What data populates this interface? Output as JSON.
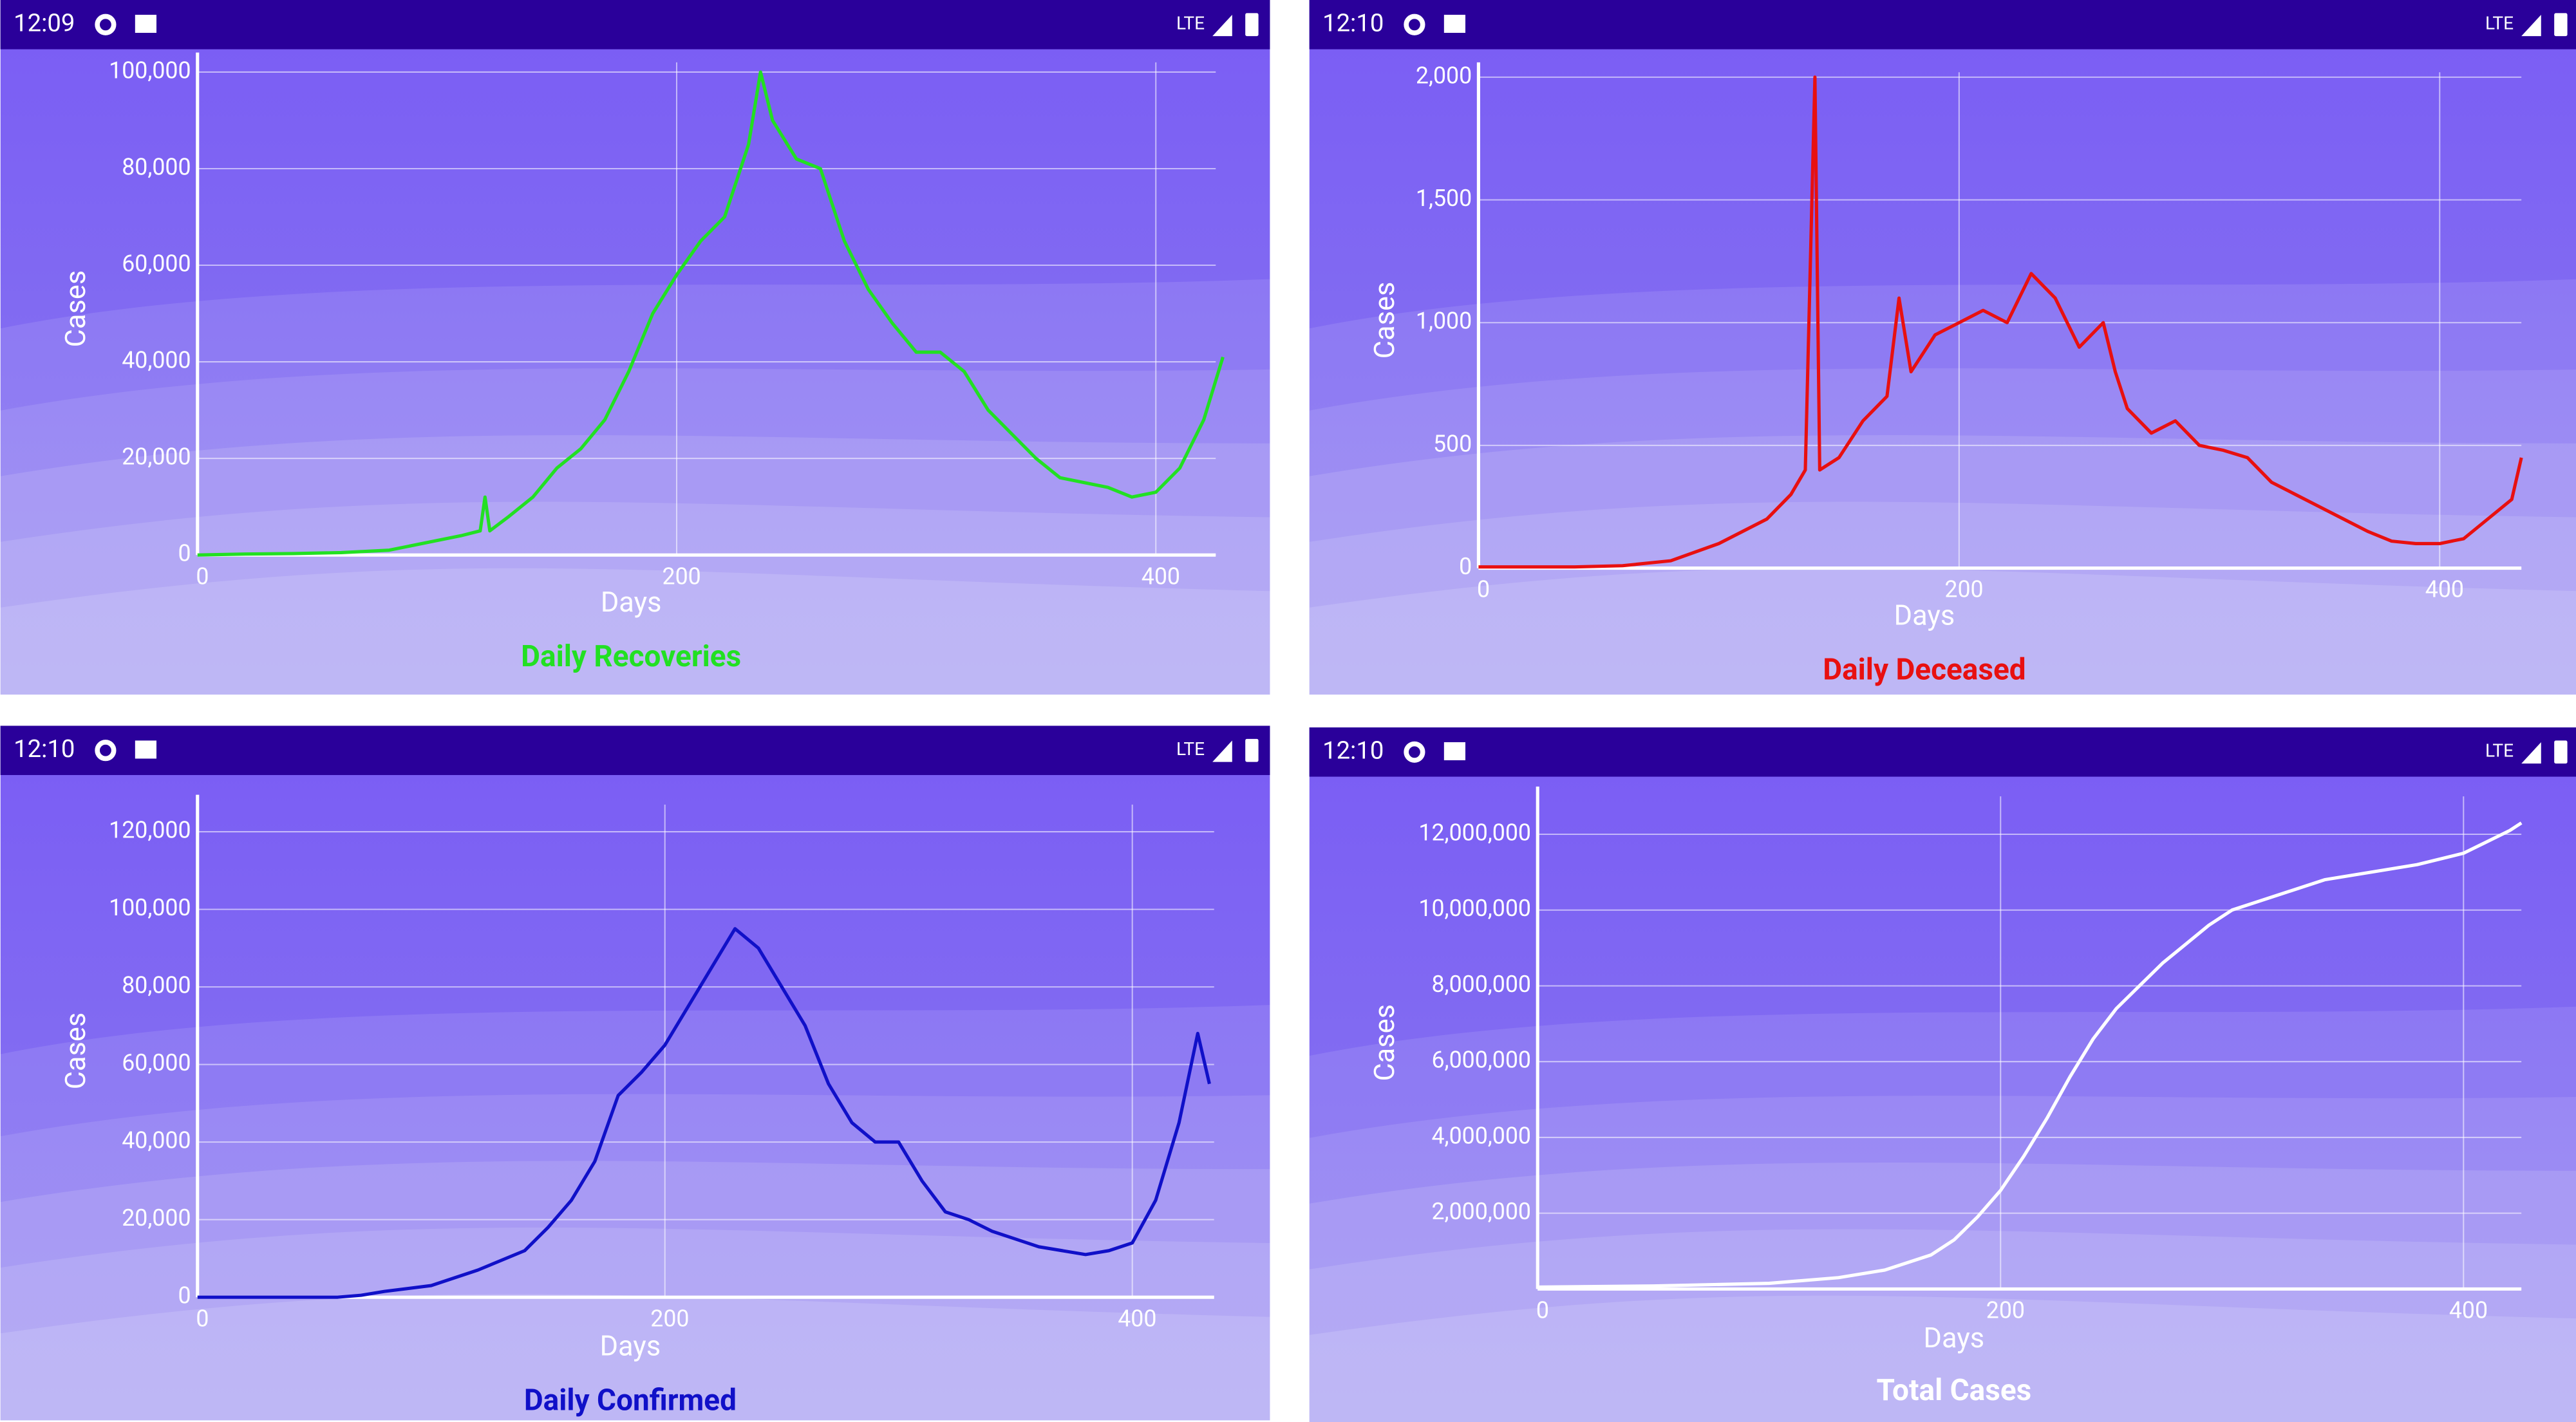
{
  "screens": [
    {
      "time": "12:09",
      "network": "LTE"
    },
    {
      "time": "12:10",
      "network": "LTE"
    },
    {
      "time": "12:10",
      "network": "LTE"
    },
    {
      "time": "12:10",
      "network": "LTE"
    }
  ],
  "chart_data": [
    {
      "type": "line",
      "title": "Daily Recoveries",
      "x_label": "Days",
      "y_label": "Cases",
      "x": [
        0,
        20,
        40,
        60,
        80,
        100,
        110,
        118,
        120,
        122,
        130,
        140,
        150,
        160,
        170,
        180,
        190,
        200,
        210,
        220,
        230,
        235,
        240,
        250,
        260,
        270,
        280,
        290,
        300,
        310,
        320,
        330,
        340,
        350,
        360,
        370,
        380,
        390,
        400,
        410,
        420,
        428
      ],
      "series": [
        {
          "color": "#22e022",
          "values": [
            0,
            200,
            300,
            500,
            1000,
            3000,
            4000,
            5000,
            12000,
            5000,
            8000,
            12000,
            18000,
            22000,
            28000,
            38000,
            50000,
            58000,
            65000,
            70000,
            85000,
            100000,
            90000,
            82000,
            80000,
            65000,
            55000,
            48000,
            42000,
            42000,
            38000,
            30000,
            25000,
            20000,
            16000,
            15000,
            14000,
            12000,
            13000,
            18000,
            28000,
            41000
          ]
        }
      ],
      "xlim": [
        0,
        425
      ],
      "ylim": [
        0,
        102000
      ],
      "xticks": [
        0,
        200,
        400
      ],
      "yticks": [
        0,
        {
          "value": 20000,
          "label": "20,000"
        },
        {
          "value": 40000,
          "label": "40,000"
        },
        {
          "value": 60000,
          "label": "60,000"
        },
        {
          "value": 80000,
          "label": "80,000"
        },
        {
          "value": 100000,
          "label": "100,000"
        }
      ],
      "grid": true
    },
    {
      "type": "line",
      "title": "Daily Deceased",
      "x_label": "Days",
      "y_label": "Cases",
      "x": [
        0,
        20,
        40,
        60,
        80,
        100,
        120,
        130,
        136,
        140,
        142,
        150,
        160,
        170,
        175,
        180,
        190,
        200,
        210,
        220,
        230,
        240,
        250,
        260,
        265,
        270,
        280,
        290,
        300,
        310,
        320,
        330,
        340,
        350,
        360,
        370,
        380,
        390,
        400,
        410,
        420,
        430,
        434
      ],
      "series": [
        {
          "color": "#e81010",
          "values": [
            5,
            5,
            5,
            10,
            30,
            100,
            200,
            300,
            400,
            2000,
            400,
            450,
            600,
            700,
            1100,
            800,
            950,
            1000,
            1050,
            1000,
            1200,
            1100,
            900,
            1000,
            800,
            650,
            550,
            600,
            500,
            480,
            450,
            350,
            300,
            250,
            200,
            150,
            110,
            100,
            100,
            120,
            200,
            280,
            450
          ]
        }
      ],
      "xlim": [
        0,
        434
      ],
      "ylim": [
        0,
        2020
      ],
      "xticks": [
        0,
        200,
        400
      ],
      "yticks": [
        0,
        500,
        {
          "value": 1000,
          "label": "1,000"
        },
        {
          "value": 1500,
          "label": "1,500"
        },
        {
          "value": 2000,
          "label": "2,000"
        }
      ],
      "grid": true
    },
    {
      "type": "line",
      "title": "Daily Confirmed",
      "x_label": "Days",
      "y_label": "Cases",
      "x": [
        0,
        20,
        40,
        60,
        70,
        80,
        100,
        120,
        140,
        150,
        160,
        170,
        180,
        190,
        200,
        210,
        220,
        230,
        240,
        250,
        260,
        270,
        280,
        290,
        300,
        310,
        320,
        330,
        340,
        350,
        360,
        370,
        380,
        390,
        400,
        410,
        420,
        428,
        433
      ],
      "series": [
        {
          "color": "#1010c8",
          "values": [
            0,
            0,
            0,
            0,
            500,
            1500,
            3000,
            7000,
            12000,
            18000,
            25000,
            35000,
            52000,
            58000,
            65000,
            75000,
            85000,
            95000,
            90000,
            80000,
            70000,
            55000,
            45000,
            40000,
            40000,
            30000,
            22000,
            20000,
            17000,
            15000,
            13000,
            12000,
            11000,
            12000,
            14000,
            25000,
            45000,
            68000,
            55000
          ]
        }
      ],
      "xlim": [
        0,
        435
      ],
      "ylim": [
        0,
        127000
      ],
      "xticks": [
        0,
        200,
        400
      ],
      "yticks": [
        0,
        {
          "value": 20000,
          "label": "20,000"
        },
        {
          "value": 40000,
          "label": "40,000"
        },
        {
          "value": 60000,
          "label": "60,000"
        },
        {
          "value": 80000,
          "label": "80,000"
        },
        {
          "value": 100000,
          "label": "100,000"
        },
        {
          "value": 120000,
          "label": "120,000"
        }
      ],
      "grid": true
    },
    {
      "type": "line",
      "title": "Total Cases",
      "x_label": "Days",
      "y_label": "Cases",
      "x": [
        0,
        50,
        100,
        130,
        150,
        170,
        180,
        190,
        200,
        210,
        220,
        230,
        240,
        250,
        260,
        270,
        280,
        290,
        300,
        320,
        340,
        360,
        380,
        400,
        410,
        420,
        425
      ],
      "series": [
        {
          "color": "#ffffff",
          "values": [
            50000,
            80000,
            150000,
            300000,
            500000,
            900000,
            1300000,
            1900000,
            2600000,
            3500000,
            4500000,
            5600000,
            6600000,
            7400000,
            8000000,
            8600000,
            9100000,
            9600000,
            10000000,
            10400000,
            10800000,
            11000000,
            11200000,
            11500000,
            11800000,
            12100000,
            12300000
          ]
        }
      ],
      "xlim": [
        0,
        425
      ],
      "ylim": [
        0,
        13000000
      ],
      "xticks": [
        0,
        200,
        400
      ],
      "yticks": [
        {
          "value": 2000000,
          "label": "2,000,000"
        },
        {
          "value": 4000000,
          "label": "4,000,000"
        },
        {
          "value": 6000000,
          "label": "6,000,000"
        },
        {
          "value": 8000000,
          "label": "8,000,000"
        },
        {
          "value": 10000000,
          "label": "10,000,000"
        },
        {
          "value": 12000000,
          "label": "12,000,000"
        }
      ],
      "grid": true
    }
  ]
}
